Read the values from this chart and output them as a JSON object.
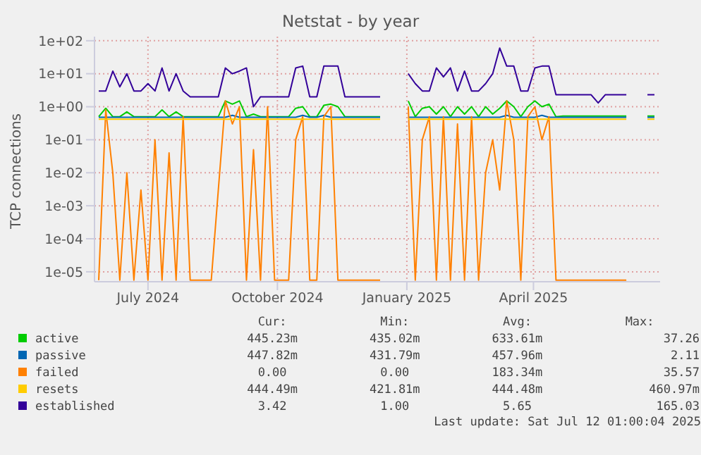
{
  "chart_data": {
    "type": "line",
    "title": "Netstat - by year",
    "ylabel": "TCP connections",
    "log": "y",
    "grid": true,
    "legend": "bottom",
    "ylim": [
      5e-06,
      133
    ],
    "yticks": [
      {
        "value": 100,
        "label": "1e+02"
      },
      {
        "value": 10,
        "label": "1e+01"
      },
      {
        "value": 1,
        "label": "1e+00"
      },
      {
        "value": 0.1,
        "label": "1e-01"
      },
      {
        "value": 0.01,
        "label": "1e-02"
      },
      {
        "value": 0.001,
        "label": "1e-03"
      },
      {
        "value": 0.0001,
        "label": "1e-04"
      },
      {
        "value": 1e-05,
        "label": "1e-05"
      }
    ],
    "xlim": [
      "2024-05-24",
      "2025-06-30"
    ],
    "xticks": [
      {
        "value": "2024-07-01",
        "label": "July 2024"
      },
      {
        "value": "2024-10-01",
        "label": "October 2024"
      },
      {
        "value": "2025-01-01",
        "label": "January 2025"
      },
      {
        "value": "2025-04-01",
        "label": "April 2025"
      }
    ],
    "x": [
      "2024-05-27",
      "2024-06-01",
      "2024-06-06",
      "2024-06-11",
      "2024-06-16",
      "2024-06-21",
      "2024-06-26",
      "2024-07-01",
      "2024-07-06",
      "2024-07-11",
      "2024-07-16",
      "2024-07-21",
      "2024-07-26",
      "2024-07-31",
      "2024-08-05",
      "2024-08-10",
      "2024-08-15",
      "2024-08-20",
      "2024-08-25",
      "2024-08-30",
      "2024-09-04",
      "2024-09-09",
      "2024-09-14",
      "2024-09-19",
      "2024-09-24",
      "2024-09-29",
      "2024-10-04",
      "2024-10-09",
      "2024-10-14",
      "2024-10-19",
      "2024-10-24",
      "2024-10-29",
      "2024-11-03",
      "2024-11-08",
      "2024-11-13",
      "2024-11-18",
      "2024-11-23",
      "2024-11-28",
      "2024-12-03",
      "2024-12-08",
      "2024-12-13",
      "2024-12-18",
      "2024-12-23",
      "2024-12-28",
      "2025-01-02",
      "2025-01-07",
      "2025-01-12",
      "2025-01-17",
      "2025-01-22",
      "2025-01-27",
      "2025-02-01",
      "2025-02-06",
      "2025-02-11",
      "2025-02-16",
      "2025-02-21",
      "2025-02-26",
      "2025-03-03",
      "2025-03-08",
      "2025-03-13",
      "2025-03-18",
      "2025-03-23",
      "2025-03-28",
      "2025-04-02",
      "2025-04-07",
      "2025-04-12",
      "2025-04-17",
      "2025-04-22",
      "2025-04-27",
      "2025-05-02",
      "2025-05-07",
      "2025-05-12",
      "2025-05-17",
      "2025-05-22",
      "2025-05-27",
      "2025-06-01",
      "2025-06-06",
      "2025-06-11",
      "2025-06-16",
      "2025-06-21",
      "2025-06-26"
    ],
    "series": [
      {
        "name": "active",
        "color": "#00cc00",
        "values": [
          0.5,
          0.9,
          0.5,
          0.5,
          0.7,
          0.5,
          0.5,
          0.5,
          0.5,
          0.8,
          0.5,
          0.7,
          0.5,
          0.5,
          0.5,
          0.5,
          0.5,
          0.5,
          1.5,
          1.2,
          1.5,
          0.5,
          0.6,
          0.5,
          0.5,
          0.5,
          0.5,
          0.5,
          0.9,
          1,
          0.5,
          0.5,
          1.1,
          1.2,
          1,
          0.5,
          0.5,
          0.5,
          0.5,
          0.5,
          0.5,
          null,
          null,
          null,
          1.5,
          0.5,
          0.9,
          1,
          0.6,
          1,
          0.5,
          1,
          0.6,
          1,
          0.5,
          1,
          0.6,
          0.9,
          1.5,
          1,
          0.5,
          1,
          1.5,
          1,
          1.2,
          0.5,
          0.52,
          0.52,
          0.52,
          0.52,
          0.52,
          0.52,
          0.52,
          0.52,
          0.52,
          0.52,
          null,
          null,
          0.52,
          0.52
        ]
      },
      {
        "name": "passive",
        "color": "#0066b3",
        "values": [
          0.48,
          0.48,
          0.48,
          0.48,
          0.48,
          0.48,
          0.48,
          0.48,
          0.48,
          0.48,
          0.48,
          0.48,
          0.48,
          0.48,
          0.48,
          0.48,
          0.48,
          0.48,
          0.48,
          0.55,
          0.48,
          0.48,
          0.48,
          0.48,
          0.48,
          0.48,
          0.48,
          0.48,
          0.48,
          0.55,
          0.48,
          0.48,
          0.55,
          0.48,
          0.48,
          0.48,
          0.48,
          0.48,
          0.48,
          0.48,
          0.48,
          null,
          null,
          null,
          0.48,
          0.48,
          0.48,
          0.48,
          0.48,
          0.48,
          0.48,
          0.48,
          0.48,
          0.48,
          0.48,
          0.48,
          0.48,
          0.48,
          0.55,
          0.48,
          0.48,
          0.48,
          0.48,
          0.55,
          0.48,
          0.48,
          0.48,
          0.48,
          0.48,
          0.48,
          0.48,
          0.48,
          0.48,
          0.48,
          0.48,
          0.48,
          null,
          null,
          0.48,
          0.48
        ]
      },
      {
        "name": "failed",
        "color": "#ff8000",
        "values": [
          5.6e-06,
          0.8,
          0.01,
          5.6e-06,
          0.01,
          5.6e-06,
          0.003,
          5.6e-06,
          0.1,
          5.6e-06,
          0.04,
          5.6e-06,
          0.5,
          5.6e-06,
          5.6e-06,
          5.6e-06,
          5.6e-06,
          0.003,
          1.5,
          0.3,
          1,
          5.6e-06,
          0.05,
          5.6e-06,
          1,
          5.6e-06,
          5.6e-06,
          5.6e-06,
          0.1,
          0.5,
          5.6e-06,
          5.6e-06,
          0.5,
          1,
          5.6e-06,
          5.6e-06,
          5.6e-06,
          5.6e-06,
          5.6e-06,
          5.6e-06,
          5.6e-06,
          null,
          null,
          null,
          1,
          5.6e-06,
          0.1,
          0.5,
          5.6e-06,
          0.5,
          5.6e-06,
          0.3,
          5.6e-06,
          0.5,
          5.6e-06,
          0.01,
          0.1,
          0.003,
          1.5,
          0.1,
          5.6e-06,
          0.5,
          1,
          0.1,
          0.5,
          5.6e-06,
          5.6e-06,
          5.6e-06,
          5.6e-06,
          5.6e-06,
          5.6e-06,
          5.6e-06,
          5.6e-06,
          5.6e-06,
          5.6e-06,
          5.6e-06,
          null,
          null,
          null,
          null
        ]
      },
      {
        "name": "resets",
        "color": "#ffcc00",
        "values": [
          0.42,
          0.42,
          0.42,
          0.42,
          0.42,
          0.42,
          0.42,
          0.42,
          0.42,
          0.42,
          0.42,
          0.42,
          0.42,
          0.42,
          0.42,
          0.42,
          0.42,
          0.42,
          0.42,
          0.42,
          0.42,
          0.42,
          0.42,
          0.42,
          0.42,
          0.42,
          0.42,
          0.42,
          0.42,
          0.42,
          0.42,
          0.42,
          0.42,
          0.42,
          0.42,
          0.42,
          0.42,
          0.42,
          0.42,
          0.42,
          0.42,
          null,
          null,
          null,
          0.42,
          0.42,
          0.42,
          0.42,
          0.42,
          0.42,
          0.42,
          0.42,
          0.42,
          0.42,
          0.42,
          0.42,
          0.42,
          0.42,
          0.42,
          0.42,
          0.42,
          0.42,
          0.42,
          0.42,
          0.42,
          0.42,
          0.42,
          0.42,
          0.42,
          0.42,
          0.42,
          0.42,
          0.42,
          0.42,
          0.42,
          0.42,
          null,
          null,
          0.42,
          0.42
        ]
      },
      {
        "name": "established",
        "color": "#330099",
        "values": [
          3,
          3,
          12,
          4,
          10,
          3,
          3,
          5,
          3,
          15,
          3,
          10,
          3,
          2,
          2,
          2,
          2,
          2,
          15,
          10,
          12,
          15,
          1,
          2,
          2,
          2,
          2,
          2,
          15,
          17,
          2,
          2,
          17,
          17,
          17,
          2,
          2,
          2,
          2,
          2,
          2,
          null,
          null,
          null,
          10,
          5,
          3,
          3,
          15,
          8,
          15,
          3,
          12,
          3,
          3,
          5,
          10,
          60,
          17,
          17,
          3,
          3,
          15,
          17,
          17,
          2.3,
          2.3,
          2.3,
          2.3,
          2.3,
          2.3,
          1.3,
          2.3,
          2.3,
          2.3,
          2.3,
          null,
          null,
          2.3,
          2.3
        ]
      }
    ],
    "annotations": [
      "Cur:",
      "Min:",
      "Avg:",
      "Max:",
      "445.23m",
      "435.02m",
      "633.61m",
      "37.26",
      "447.82m",
      "431.79m",
      "457.96m",
      "2.11",
      "0.00",
      "0.00",
      "183.34m",
      "35.57",
      "444.49m",
      "421.81m",
      "444.48m",
      "460.97m",
      "3.42",
      "1.00",
      "5.65",
      "165.03",
      "Last update: Sat Jul 12 01:00:04 2025"
    ]
  }
}
